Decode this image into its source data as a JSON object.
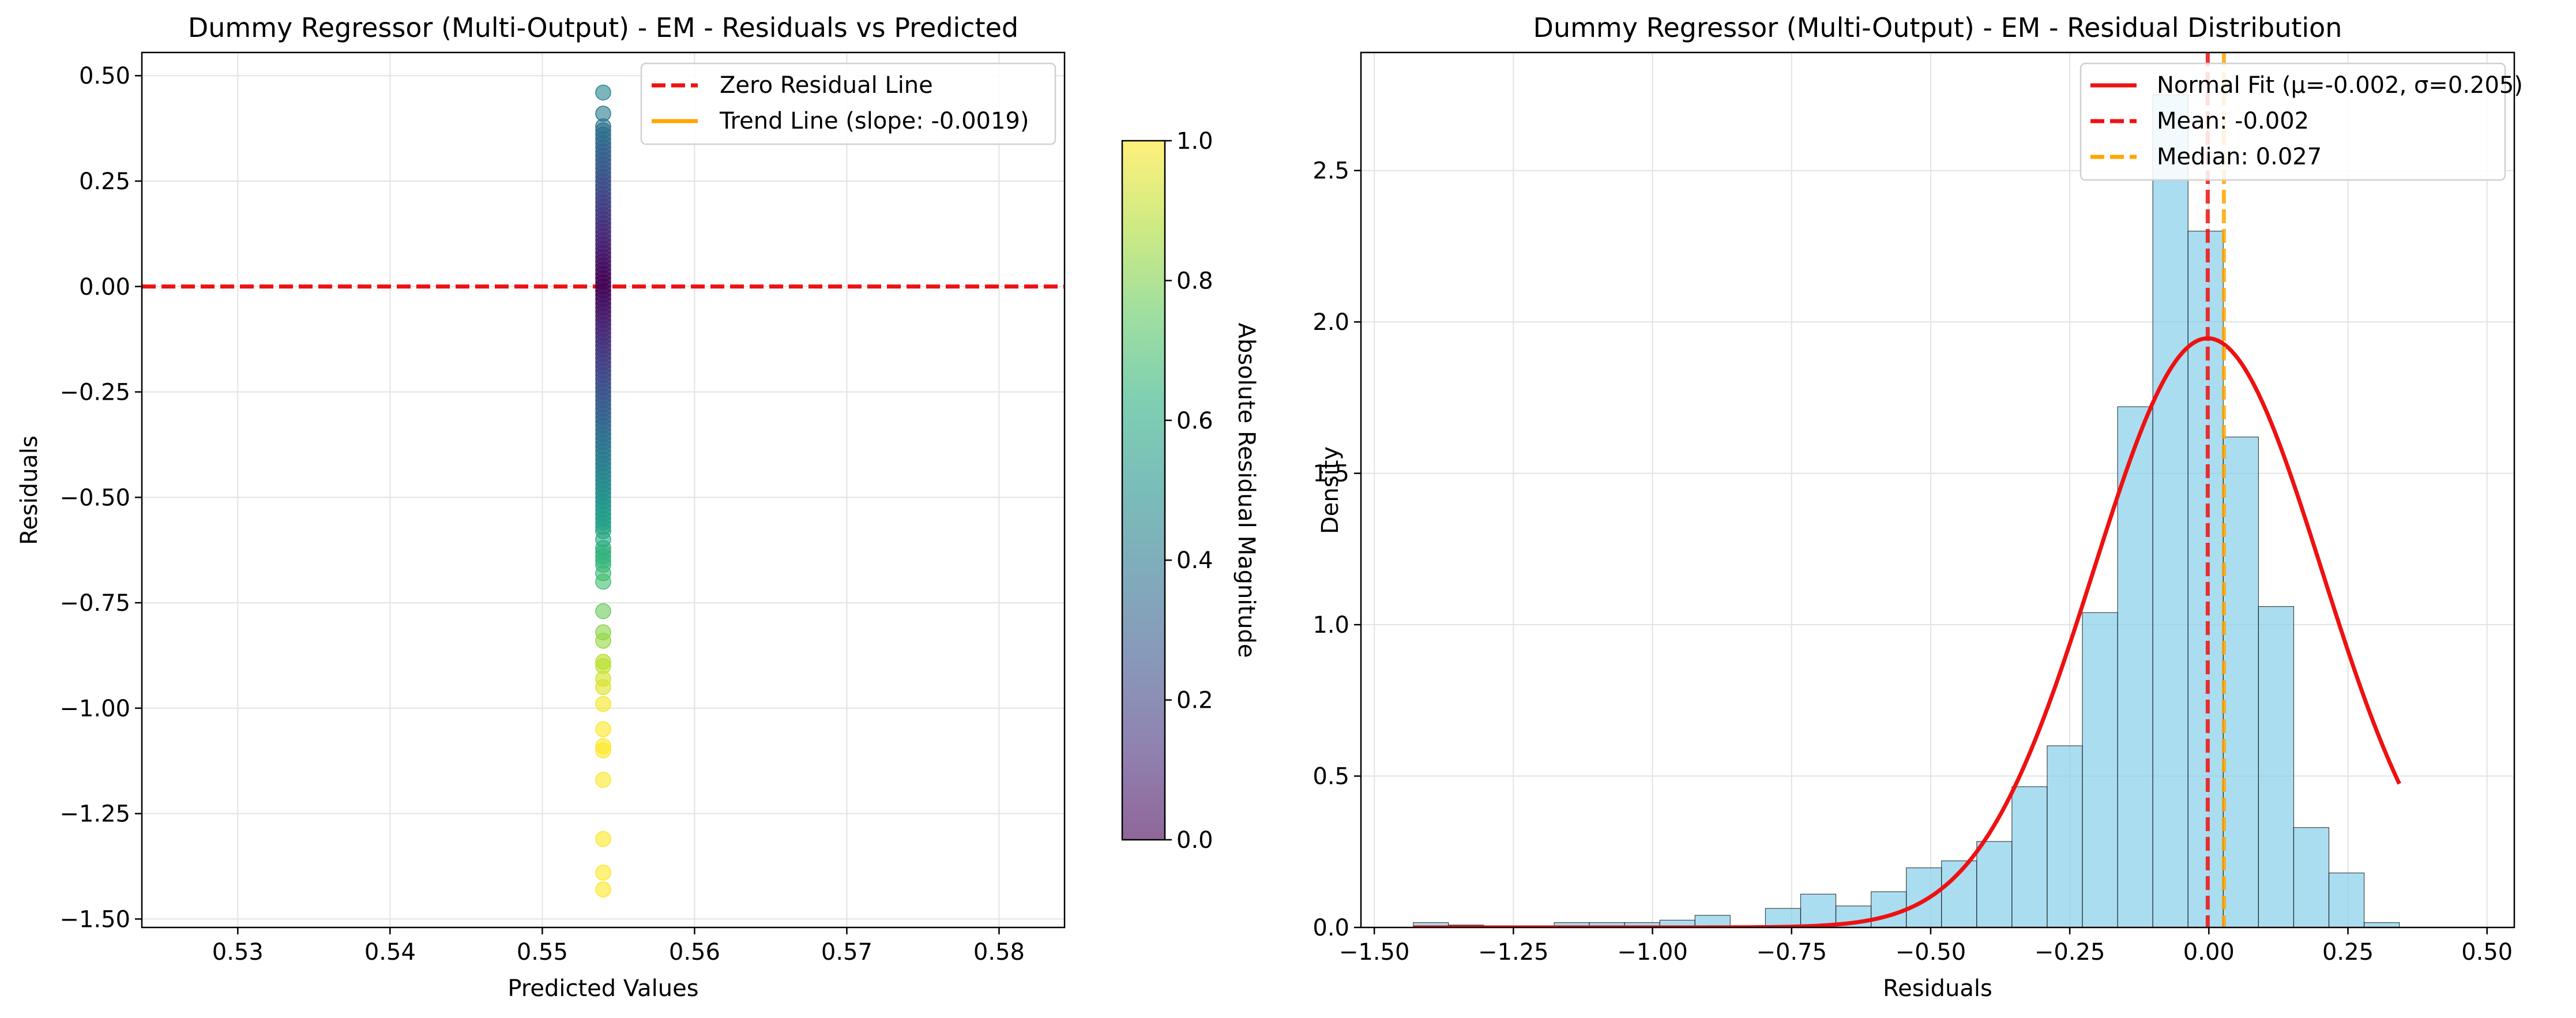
{
  "chart_data": [
    {
      "type": "scatter",
      "title": "Dummy Regressor (Multi-Output) - EM - Residuals vs Predicted",
      "xlabel": "Predicted Values",
      "ylabel": "Residuals",
      "xlim": [
        0.5237,
        0.5843
      ],
      "ylim": [
        -1.52,
        0.555
      ],
      "x_ticks": [
        0.53,
        0.54,
        0.55,
        0.56,
        0.57,
        0.58
      ],
      "x_tick_labels": [
        "0.53",
        "0.54",
        "0.55",
        "0.56",
        "0.57",
        "0.58"
      ],
      "y_ticks": [
        0.5,
        0.25,
        0.0,
        -0.25,
        -0.5,
        -0.75,
        -1.0,
        -1.25,
        -1.5
      ],
      "y_tick_labels": [
        "0.50",
        "0.25",
        "0.00",
        "−0.25",
        "−0.50",
        "−0.75",
        "−1.00",
        "−1.25",
        "−1.50"
      ],
      "grid": true,
      "legend_position": "top-right",
      "legend": [
        {
          "label": "Zero Residual Line",
          "color": "#ee1111",
          "style": "dashed"
        },
        {
          "label": "Trend Line (slope: -0.0019)",
          "color": "#ffa500",
          "style": "solid"
        }
      ],
      "points": {
        "x": 0.554,
        "residuals": [
          0.46,
          0.41,
          0.38,
          0.37,
          0.36,
          0.35,
          0.34,
          0.33,
          0.32,
          0.31,
          0.3,
          0.29,
          0.28,
          0.27,
          0.26,
          0.25,
          0.24,
          0.23,
          0.22,
          0.21,
          0.2,
          0.19,
          0.18,
          0.17,
          0.16,
          0.15,
          0.14,
          0.13,
          0.12,
          0.11,
          0.1,
          0.09,
          0.08,
          0.07,
          0.06,
          0.05,
          0.04,
          0.03,
          0.02,
          0.01,
          0.0,
          -0.01,
          -0.02,
          -0.03,
          -0.04,
          -0.05,
          -0.06,
          -0.07,
          -0.08,
          -0.09,
          -0.1,
          -0.11,
          -0.12,
          -0.13,
          -0.14,
          -0.15,
          -0.16,
          -0.17,
          -0.18,
          -0.19,
          -0.2,
          -0.21,
          -0.22,
          -0.23,
          -0.24,
          -0.25,
          -0.26,
          -0.27,
          -0.28,
          -0.29,
          -0.3,
          -0.31,
          -0.32,
          -0.33,
          -0.34,
          -0.35,
          -0.36,
          -0.37,
          -0.38,
          -0.39,
          -0.4,
          -0.41,
          -0.42,
          -0.43,
          -0.44,
          -0.45,
          -0.46,
          -0.47,
          -0.48,
          -0.49,
          -0.5,
          -0.51,
          -0.52,
          -0.53,
          -0.54,
          -0.55,
          -0.56,
          -0.57,
          -0.58,
          -0.6,
          -0.62,
          -0.63,
          -0.64,
          -0.65,
          -0.66,
          -0.68,
          -0.7,
          -0.77,
          -0.82,
          -0.84,
          -0.89,
          -0.9,
          -0.93,
          -0.95,
          -0.99,
          -1.05,
          -1.09,
          -1.1,
          -1.17,
          -1.31,
          -1.39,
          -1.43
        ]
      },
      "zero_line": 0.0,
      "trend_slope": -0.0019,
      "colorbar": {
        "label": "Absolute Residual Magnitude",
        "range": [
          0.0,
          1.0
        ],
        "ticks": [
          0.0,
          0.2,
          0.4,
          0.6,
          0.8,
          1.0
        ],
        "tick_labels": [
          "0.0",
          "0.2",
          "0.4",
          "0.6",
          "0.8",
          "1.0"
        ],
        "colormap": "viridis"
      }
    },
    {
      "type": "histogram",
      "title": "Dummy Regressor (Multi-Output) - EM - Residual Distribution",
      "xlabel": "Residuals",
      "ylabel": "Density",
      "xlim": [
        -1.524,
        0.549
      ],
      "ylim": [
        0.0,
        2.89
      ],
      "x_ticks": [
        -1.5,
        -1.25,
        -1.0,
        -0.75,
        -0.5,
        -0.25,
        0.0,
        0.25,
        0.5
      ],
      "x_tick_labels": [
        "−1.50",
        "−1.25",
        "−1.00",
        "−0.75",
        "−0.50",
        "−0.25",
        "0.00",
        "0.25",
        "0.50"
      ],
      "y_ticks": [
        0.0,
        0.5,
        1.0,
        1.5,
        2.0,
        2.5
      ],
      "y_tick_labels": [
        "0.0",
        "0.5",
        "1.0",
        "1.5",
        "2.0",
        "2.5"
      ],
      "grid": true,
      "legend_position": "top-right",
      "bins": {
        "start": -1.43,
        "width": 0.0633,
        "density": [
          0.016,
          0.008,
          0.005,
          0.005,
          0.016,
          0.016,
          0.016,
          0.024,
          0.04,
          0.0,
          0.063,
          0.11,
          0.071,
          0.118,
          0.197,
          0.22,
          0.284,
          0.465,
          0.6,
          1.04,
          1.72,
          2.75,
          2.3,
          1.62,
          1.06,
          0.33,
          0.18,
          0.016
        ],
        "color": "#87ceeb"
      },
      "normal_fit": {
        "mu": -0.002,
        "sigma": 0.205,
        "color": "#ee1111"
      },
      "mean": -0.002,
      "median": 0.027,
      "legend": [
        {
          "label": "Normal Fit (μ=-0.002, σ=0.205)",
          "color": "#ee1111",
          "style": "solid"
        },
        {
          "label": "Mean: -0.002",
          "color": "#ee1111",
          "style": "dashed"
        },
        {
          "label": "Median: 0.027",
          "color": "#ffa500",
          "style": "dashed"
        }
      ]
    }
  ]
}
